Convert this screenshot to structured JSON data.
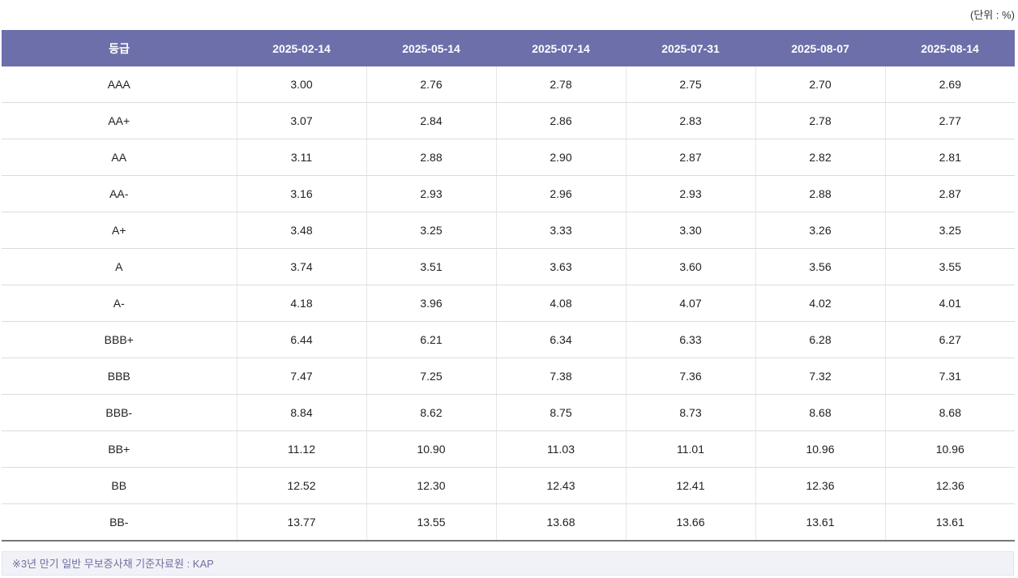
{
  "unit_label": "(단위 : %)",
  "table": {
    "headers": [
      "등급",
      "2025-02-14",
      "2025-05-14",
      "2025-07-14",
      "2025-07-31",
      "2025-08-07",
      "2025-08-14"
    ],
    "rows": [
      [
        "AAA",
        "3.00",
        "2.76",
        "2.78",
        "2.75",
        "2.70",
        "2.69"
      ],
      [
        "AA+",
        "3.07",
        "2.84",
        "2.86",
        "2.83",
        "2.78",
        "2.77"
      ],
      [
        "AA",
        "3.11",
        "2.88",
        "2.90",
        "2.87",
        "2.82",
        "2.81"
      ],
      [
        "AA-",
        "3.16",
        "2.93",
        "2.96",
        "2.93",
        "2.88",
        "2.87"
      ],
      [
        "A+",
        "3.48",
        "3.25",
        "3.33",
        "3.30",
        "3.26",
        "3.25"
      ],
      [
        "A",
        "3.74",
        "3.51",
        "3.63",
        "3.60",
        "3.56",
        "3.55"
      ],
      [
        "A-",
        "4.18",
        "3.96",
        "4.08",
        "4.07",
        "4.02",
        "4.01"
      ],
      [
        "BBB+",
        "6.44",
        "6.21",
        "6.34",
        "6.33",
        "6.28",
        "6.27"
      ],
      [
        "BBB",
        "7.47",
        "7.25",
        "7.38",
        "7.36",
        "7.32",
        "7.31"
      ],
      [
        "BBB-",
        "8.84",
        "8.62",
        "8.75",
        "8.73",
        "8.68",
        "8.68"
      ],
      [
        "BB+",
        "11.12",
        "10.90",
        "11.03",
        "11.01",
        "10.96",
        "10.96"
      ],
      [
        "BB",
        "12.52",
        "12.30",
        "12.43",
        "12.41",
        "12.36",
        "12.36"
      ],
      [
        "BB-",
        "13.77",
        "13.55",
        "13.68",
        "13.66",
        "13.61",
        "13.61"
      ]
    ]
  },
  "footnote": "※3년 만기 일반 무보증사채 기준자료원 : KAP",
  "colors": {
    "header_bg": "#6d6faa",
    "header_text": "#ffffff",
    "note_bg": "#f1f2f8",
    "note_text": "#6e6f9c"
  }
}
